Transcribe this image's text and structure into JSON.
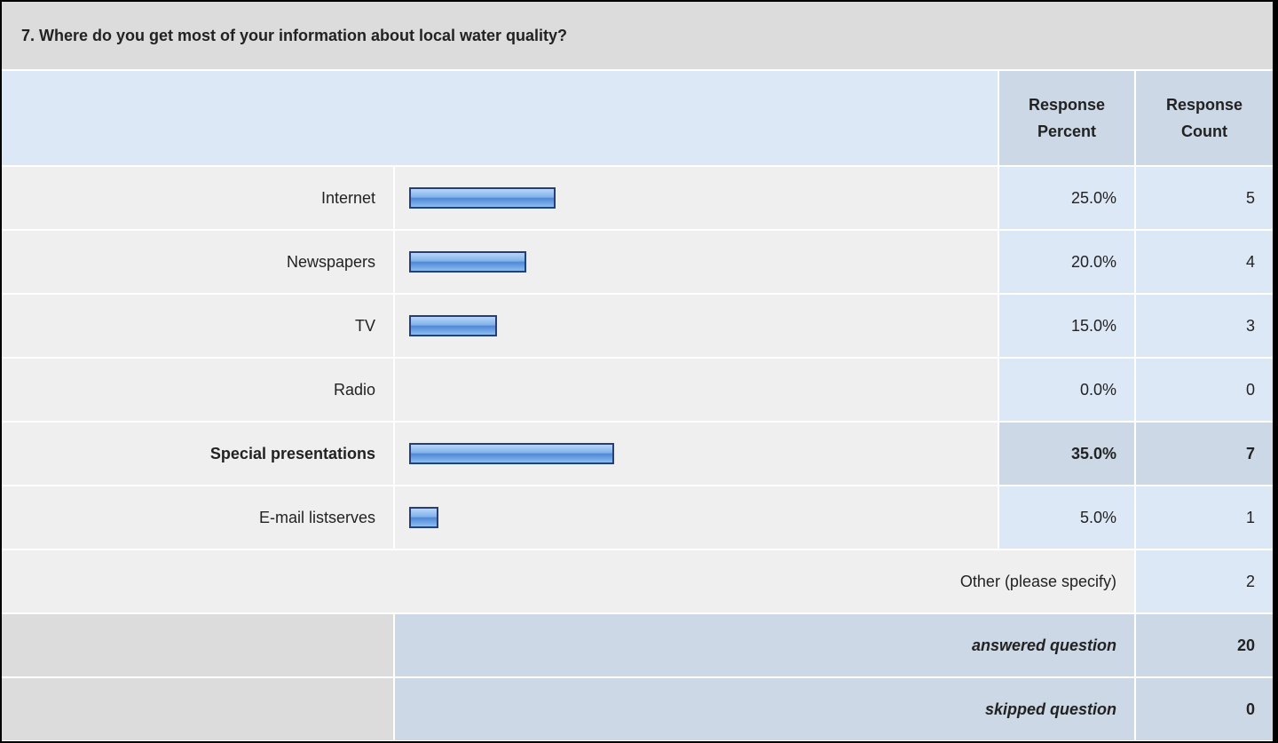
{
  "question": "7. Where do you get most of your information about local water quality?",
  "columns": [
    "Response Percent",
    "Response Count"
  ],
  "rows": [
    {
      "label": "Internet",
      "percent": 25,
      "percent_label": "25.0%",
      "count": 5
    },
    {
      "label": "Newspapers",
      "percent": 20,
      "percent_label": "20.0%",
      "count": 4
    },
    {
      "label": "TV",
      "percent": 15,
      "percent_label": "15.0%",
      "count": 3
    },
    {
      "label": "Radio",
      "percent": 0,
      "percent_label": "0.0%",
      "count": 0
    },
    {
      "label": "Special presentations",
      "percent": 35,
      "percent_label": "35.0%",
      "count": 7
    },
    {
      "label": "E-mail listserves",
      "percent": 5,
      "percent_label": "5.0%",
      "count": 1
    }
  ],
  "other": {
    "label": "Other (please specify)",
    "count": 2
  },
  "answered": {
    "label": "answered question",
    "count": 20
  },
  "skipped": {
    "label": "skipped question",
    "count": 0
  }
}
